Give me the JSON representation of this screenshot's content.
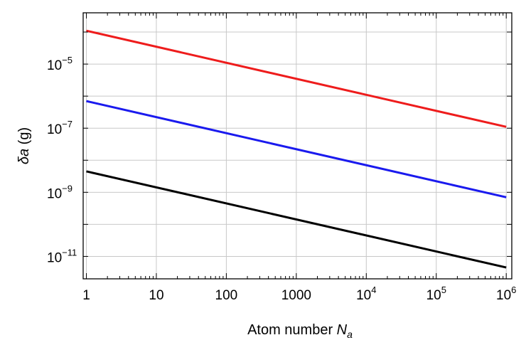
{
  "chart_data": {
    "type": "line",
    "xscale": "log",
    "yscale": "log",
    "xlim": [
      0.9,
      1200000
    ],
    "ylim_exp": [
      -11.7,
      -3.4
    ],
    "xlabel": {
      "text": "Atom number ",
      "italic": "N",
      "sub": "a"
    },
    "ylabel": {
      "italic": "δa",
      "text": " (g)"
    },
    "x_ticks": [
      {
        "value": 1,
        "base": "1",
        "exp": ""
      },
      {
        "value": 10,
        "base": "10",
        "exp": ""
      },
      {
        "value": 100,
        "base": "100",
        "exp": ""
      },
      {
        "value": 1000,
        "base": "1000",
        "exp": ""
      },
      {
        "value": 10000,
        "base": "10",
        "exp": "4"
      },
      {
        "value": 100000,
        "base": "10",
        "exp": "5"
      },
      {
        "value": 1000000,
        "base": "10",
        "exp": "6"
      }
    ],
    "y_ticks": [
      {
        "exp_value": -5,
        "base": "10",
        "exp": "−5"
      },
      {
        "exp_value": -7,
        "base": "10",
        "exp": "−7"
      },
      {
        "exp_value": -9,
        "base": "10",
        "exp": "−9"
      },
      {
        "exp_value": -11,
        "base": "10",
        "exp": "−11"
      }
    ],
    "grid": true,
    "series": [
      {
        "name": "red",
        "color": "#ee1c1c",
        "x": [
          1,
          1000000
        ],
        "y": [
          0.00011,
          1.1e-07
        ]
      },
      {
        "name": "blue",
        "color": "#1a1aee",
        "x": [
          1,
          1000000
        ],
        "y": [
          7e-07,
          7e-10
        ]
      },
      {
        "name": "black",
        "color": "#000000",
        "x": [
          1,
          1000000
        ],
        "y": [
          4.5e-09,
          4.5e-12
        ]
      }
    ]
  }
}
